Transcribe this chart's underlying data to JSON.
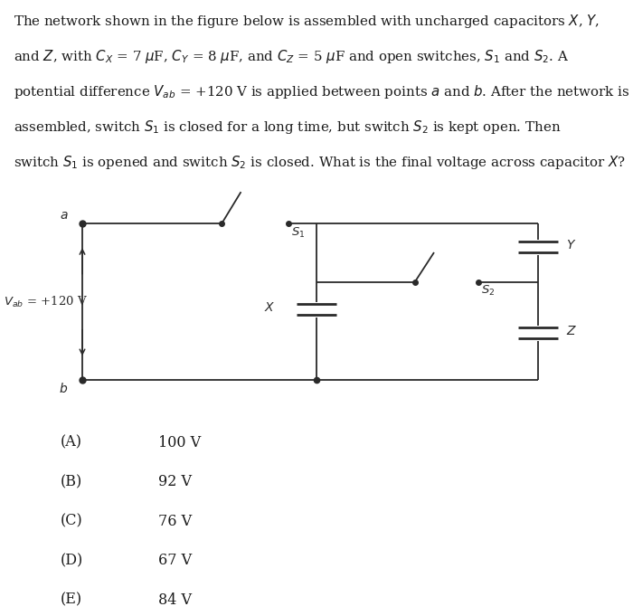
{
  "bg_color": "#ffffff",
  "text_color": "#1a1a1a",
  "line_color": "#2a2a2a",
  "problem_lines": [
    "The network shown in the figure below is assembled with uncharged capacitors $X$, $Y$,",
    "and $Z$, with $C_X$ = 7 $\\mu$F, $C_Y$ = 8 $\\mu$F, and $C_Z$ = 5 $\\mu$F and open switches, $S_1$ and $S_2$. A",
    "potential difference $V_{ab}$ = +120 V is applied between points $a$ and $b$. After the network is",
    "assembled, switch $S_1$ is closed for a long time, but switch $S_2$ is kept open. Then",
    "switch $S_1$ is opened and switch $S_2$ is closed. What is the final voltage across capacitor $X$?"
  ],
  "choices": [
    [
      "(A)",
      "100 V"
    ],
    [
      "(B)",
      "92 V"
    ],
    [
      "(C)",
      "76 V"
    ],
    [
      "(D)",
      "67 V"
    ],
    [
      "(E)",
      "84 V"
    ]
  ]
}
